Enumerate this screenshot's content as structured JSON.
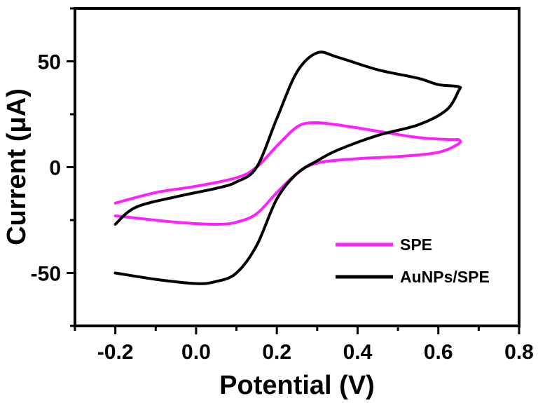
{
  "chart_data": {
    "type": "line",
    "xlabel": "Potential (V)",
    "ylabel": "Current (μA)",
    "xlim": [
      -0.3,
      0.8
    ],
    "ylim": [
      -75,
      75
    ],
    "xticks": [
      "-0.2",
      "0.0",
      "0.2",
      "0.4",
      "0.6",
      "0.8"
    ],
    "yticks": [
      "50",
      "0",
      "-50"
    ],
    "legend": {
      "placement": "bottom-right"
    },
    "series": [
      {
        "name": "SPE",
        "color": "#ff1fff",
        "points": [
          [
            -0.2,
            -17
          ],
          [
            -0.1,
            -12
          ],
          [
            0.0,
            -9
          ],
          [
            0.1,
            -5
          ],
          [
            0.15,
            0
          ],
          [
            0.2,
            10
          ],
          [
            0.25,
            19
          ],
          [
            0.29,
            21
          ],
          [
            0.35,
            20
          ],
          [
            0.45,
            17
          ],
          [
            0.55,
            14
          ],
          [
            0.63,
            13
          ],
          [
            0.65,
            13
          ],
          [
            0.65,
            11
          ],
          [
            0.6,
            7
          ],
          [
            0.5,
            5
          ],
          [
            0.4,
            4
          ],
          [
            0.3,
            2
          ],
          [
            0.25,
            -3
          ],
          [
            0.2,
            -12
          ],
          [
            0.15,
            -22
          ],
          [
            0.1,
            -26
          ],
          [
            0.05,
            -27
          ],
          [
            -0.05,
            -26
          ],
          [
            -0.15,
            -24
          ],
          [
            -0.2,
            -23
          ]
        ]
      },
      {
        "name": "AuNPs/SPE",
        "color": "#000000",
        "points": [
          [
            -0.2,
            -27
          ],
          [
            -0.15,
            -19
          ],
          [
            -0.05,
            -14
          ],
          [
            0.05,
            -10
          ],
          [
            0.1,
            -7
          ],
          [
            0.15,
            0
          ],
          [
            0.2,
            23
          ],
          [
            0.25,
            45
          ],
          [
            0.3,
            54
          ],
          [
            0.35,
            52
          ],
          [
            0.45,
            46
          ],
          [
            0.55,
            42
          ],
          [
            0.6,
            39
          ],
          [
            0.65,
            38
          ],
          [
            0.65,
            36
          ],
          [
            0.62,
            27
          ],
          [
            0.55,
            20
          ],
          [
            0.45,
            15
          ],
          [
            0.35,
            8
          ],
          [
            0.3,
            3
          ],
          [
            0.25,
            -3
          ],
          [
            0.2,
            -15
          ],
          [
            0.15,
            -37
          ],
          [
            0.1,
            -50
          ],
          [
            0.05,
            -54
          ],
          [
            0.0,
            -55
          ],
          [
            -0.1,
            -53
          ],
          [
            -0.2,
            -50
          ]
        ]
      }
    ]
  }
}
